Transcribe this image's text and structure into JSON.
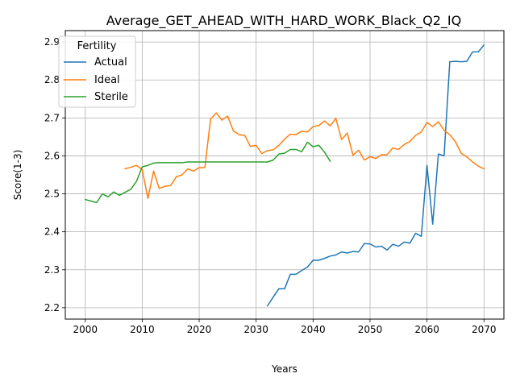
{
  "chart_data": {
    "type": "line",
    "title": "Average_GET_AHEAD_WITH_HARD_WORK_Black_Q2_IQ",
    "xlabel": "Years",
    "ylabel": "Score(1-3)",
    "xlim": [
      1996.5,
      2073.5
    ],
    "ylim": [
      2.17,
      2.93
    ],
    "xticks": [
      2000,
      2010,
      2020,
      2030,
      2040,
      2050,
      2060,
      2070
    ],
    "yticks": [
      2.2,
      2.3,
      2.4,
      2.5,
      2.6,
      2.7,
      2.8,
      2.9
    ],
    "grid": true,
    "legend": {
      "title": "Fertility",
      "placement": "top-left"
    },
    "series": [
      {
        "name": "Actual",
        "color": "#1f77b4",
        "x": [
          2032,
          2033,
          2034,
          2035,
          2036,
          2037,
          2038,
          2039,
          2040,
          2041,
          2042,
          2043,
          2044,
          2045,
          2046,
          2047,
          2048,
          2049,
          2050,
          2051,
          2052,
          2053,
          2054,
          2055,
          2056,
          2057,
          2058,
          2059,
          2060,
          2061,
          2062,
          2063,
          2064,
          2065,
          2066,
          2067,
          2068,
          2069,
          2070
        ],
        "y": [
          2.205,
          2.228,
          2.25,
          2.25,
          2.288,
          2.288,
          2.298,
          2.307,
          2.325,
          2.325,
          2.33,
          2.336,
          2.339,
          2.347,
          2.344,
          2.348,
          2.347,
          2.369,
          2.368,
          2.36,
          2.362,
          2.352,
          2.367,
          2.362,
          2.373,
          2.37,
          2.396,
          2.388,
          2.575,
          2.42,
          2.605,
          2.6,
          2.848,
          2.849,
          2.848,
          2.849,
          2.874,
          2.874,
          2.892
        ]
      },
      {
        "name": "Ideal",
        "color": "#ff7f0e",
        "x": [
          2007,
          2008,
          2009,
          2010,
          2011,
          2012,
          2013,
          2014,
          2015,
          2016,
          2017,
          2018,
          2019,
          2020,
          2021,
          2022,
          2023,
          2024,
          2025,
          2026,
          2027,
          2028,
          2029,
          2030,
          2031,
          2032,
          2033,
          2034,
          2035,
          2036,
          2037,
          2038,
          2039,
          2040,
          2041,
          2042,
          2043,
          2044,
          2045,
          2046,
          2047,
          2048,
          2049,
          2050,
          2051,
          2052,
          2053,
          2054,
          2055,
          2056,
          2057,
          2058,
          2059,
          2060,
          2061,
          2062,
          2063,
          2064,
          2065,
          2066,
          2067,
          2068,
          2069,
          2070
        ],
        "y": [
          2.566,
          2.57,
          2.575,
          2.564,
          2.488,
          2.56,
          2.514,
          2.52,
          2.522,
          2.545,
          2.55,
          2.566,
          2.56,
          2.569,
          2.569,
          2.697,
          2.713,
          2.694,
          2.705,
          2.666,
          2.656,
          2.654,
          2.625,
          2.628,
          2.606,
          2.614,
          2.616,
          2.628,
          2.644,
          2.657,
          2.656,
          2.665,
          2.663,
          2.677,
          2.68,
          2.692,
          2.679,
          2.699,
          2.643,
          2.66,
          2.602,
          2.615,
          2.589,
          2.598,
          2.593,
          2.603,
          2.603,
          2.621,
          2.617,
          2.63,
          2.638,
          2.654,
          2.663,
          2.688,
          2.677,
          2.69,
          2.667,
          2.656,
          2.637,
          2.607,
          2.597,
          2.584,
          2.573,
          2.566
        ]
      },
      {
        "name": "Sterile",
        "color": "#2ca02c",
        "x": [
          2000,
          2001,
          2002,
          2003,
          2004,
          2005,
          2006,
          2007,
          2008,
          2009,
          2010,
          2011,
          2012,
          2013,
          2014,
          2015,
          2016,
          2017,
          2018,
          2019,
          2020,
          2021,
          2022,
          2023,
          2024,
          2025,
          2026,
          2027,
          2028,
          2029,
          2030,
          2031,
          2032,
          2033,
          2034,
          2035,
          2036,
          2037,
          2038,
          2039,
          2040,
          2041,
          2042,
          2043
        ],
        "y": [
          2.485,
          2.481,
          2.477,
          2.5,
          2.492,
          2.505,
          2.496,
          2.504,
          2.512,
          2.533,
          2.571,
          2.575,
          2.581,
          2.582,
          2.582,
          2.582,
          2.582,
          2.582,
          2.584,
          2.584,
          2.584,
          2.584,
          2.584,
          2.584,
          2.584,
          2.584,
          2.584,
          2.584,
          2.584,
          2.584,
          2.584,
          2.584,
          2.584,
          2.589,
          2.605,
          2.607,
          2.617,
          2.617,
          2.611,
          2.636,
          2.624,
          2.628,
          2.61,
          2.586
        ]
      }
    ]
  }
}
